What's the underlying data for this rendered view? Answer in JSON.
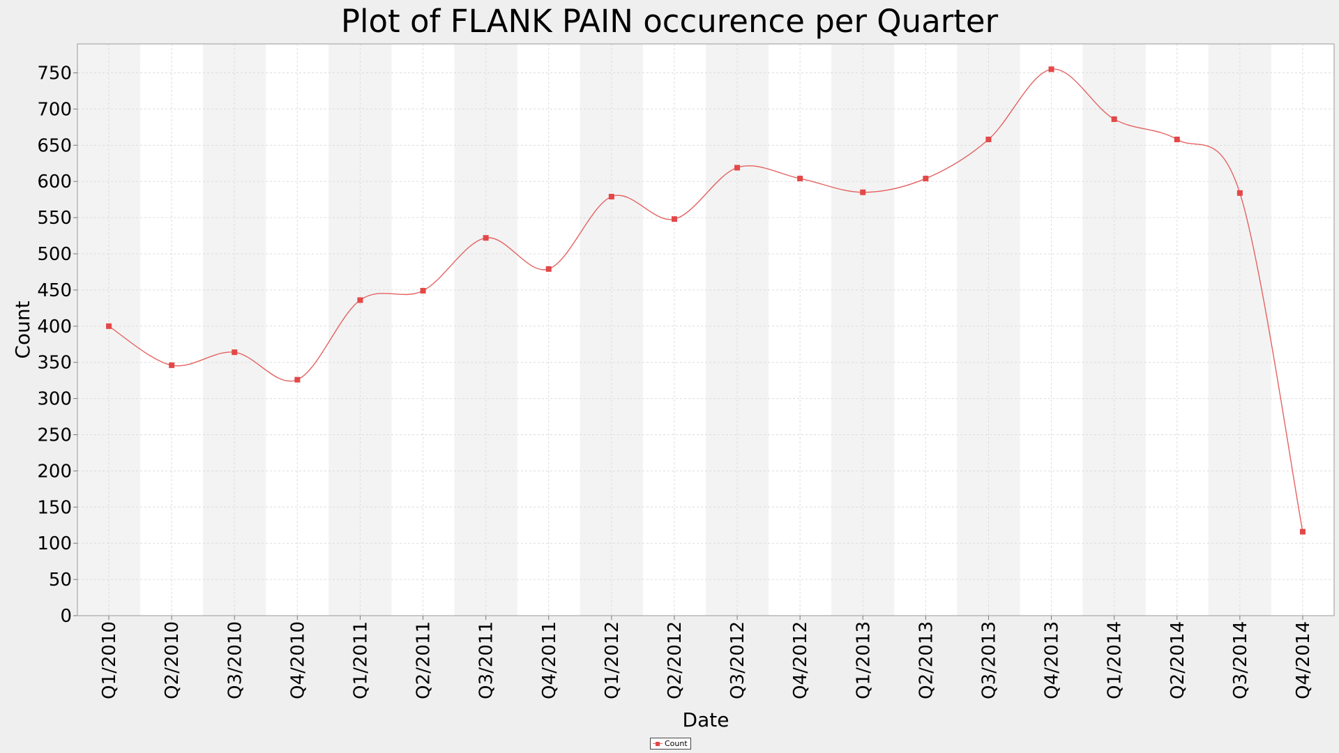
{
  "chart_data": {
    "type": "line",
    "title": "Plot of FLANK PAIN occurence per Quarter",
    "xlabel": "Date",
    "ylabel": "Count",
    "ylim": [
      0,
      790
    ],
    "yticks": [
      0,
      50,
      100,
      150,
      200,
      250,
      300,
      350,
      400,
      450,
      500,
      550,
      600,
      650,
      700,
      750
    ],
    "categories": [
      "Q1/2010",
      "Q2/2010",
      "Q3/2010",
      "Q4/2010",
      "Q1/2011",
      "Q2/2011",
      "Q3/2011",
      "Q4/2011",
      "Q1/2012",
      "Q2/2012",
      "Q3/2012",
      "Q4/2012",
      "Q1/2013",
      "Q2/2013",
      "Q3/2013",
      "Q4/2013",
      "Q1/2014",
      "Q2/2014",
      "Q3/2014",
      "Q4/2014"
    ],
    "series": [
      {
        "name": "Count",
        "color": "#e46161",
        "values": [
          400,
          346,
          364,
          326,
          436,
          449,
          522,
          479,
          579,
          548,
          619,
          604,
          585,
          604,
          658,
          755,
          686,
          658,
          584,
          116
        ]
      }
    ],
    "grid": true,
    "legend": "bottom-center",
    "band_colors": [
      "#f3f3f3",
      "#ffffff"
    ]
  }
}
